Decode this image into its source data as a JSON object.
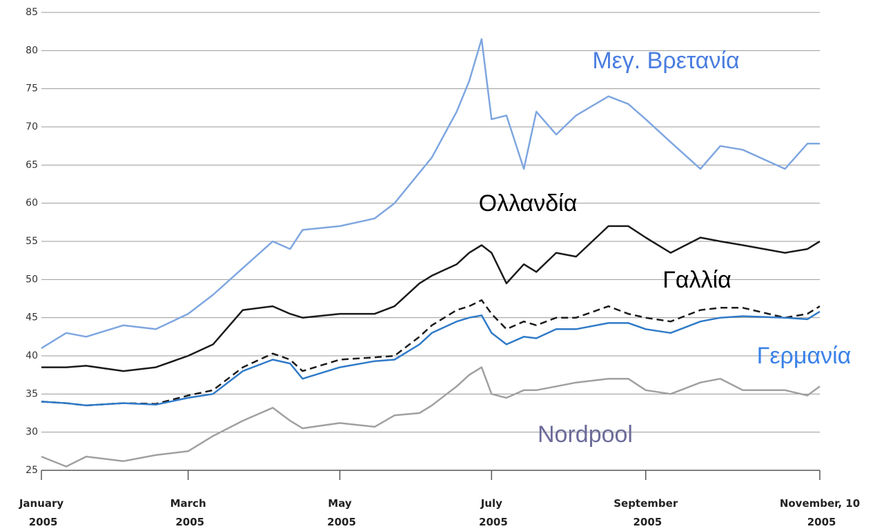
{
  "chart_data": {
    "type": "line",
    "x": [
      0,
      10,
      18,
      33,
      46,
      59,
      69,
      81,
      93,
      100,
      105,
      120,
      134,
      142,
      152,
      157,
      167,
      172,
      177,
      181,
      187,
      194,
      199,
      207,
      215,
      228,
      236,
      243,
      253,
      265,
      273,
      282,
      299,
      308,
      313
    ],
    "xlim": [
      0,
      313
    ],
    "xticks": [
      {
        "value": 0,
        "label": "January 2005"
      },
      {
        "value": 59,
        "label": "March 2005"
      },
      {
        "value": 120,
        "label": "May 2005"
      },
      {
        "value": 181,
        "label": "July 2005"
      },
      {
        "value": 243,
        "label": "September 2005"
      },
      {
        "value": 313,
        "label": "November, 10 2005"
      }
    ],
    "ylim": [
      25,
      85
    ],
    "yticks": [
      25,
      30,
      35,
      40,
      45,
      50,
      55,
      60,
      65,
      70,
      75,
      80,
      85
    ],
    "grid": true,
    "series": [
      {
        "name": "Μεγ. Βρετανία",
        "color": "#7ea6e0",
        "label_color": "#4a7de0",
        "values": [
          41,
          43,
          42.5,
          44,
          43.5,
          45.5,
          48,
          51.5,
          55,
          54,
          56.5,
          57,
          58,
          60,
          64,
          66,
          72,
          76,
          81.5,
          71,
          71.5,
          64.5,
          72,
          69,
          71.5,
          74,
          73,
          71,
          68,
          64.5,
          67.5,
          67,
          64.5,
          67.8,
          67.8
        ]
      },
      {
        "name": "Ολλανδία",
        "color": "#1a1a1a",
        "label_color": "#000000",
        "values": [
          38.5,
          38.5,
          38.7,
          38,
          38.5,
          40,
          41.5,
          46,
          46.5,
          45.5,
          45,
          45.5,
          45.5,
          46.5,
          49.5,
          50.5,
          52,
          53.5,
          54.5,
          53.5,
          49.5,
          52,
          51,
          53.5,
          53,
          57,
          57,
          55.5,
          53.5,
          55.5,
          55,
          54.5,
          53.5,
          54,
          55
        ]
      },
      {
        "name": "Γαλλία",
        "color": "#1a1a1a",
        "label_color": "#000000",
        "dashed": true,
        "values": [
          34,
          33.8,
          33.5,
          33.8,
          33.7,
          34.8,
          35.5,
          38.5,
          40.3,
          39.5,
          38,
          39.5,
          39.8,
          40,
          42.5,
          44,
          46,
          46.5,
          47.3,
          45.5,
          43.5,
          44.5,
          44,
          45,
          45,
          46.5,
          45.5,
          45,
          44.5,
          46,
          46.3,
          46.3,
          45,
          45.5,
          46.5
        ]
      },
      {
        "name": "Γερμανία",
        "color": "#2f7ac8",
        "label_color": "#3b82e8",
        "values": [
          34,
          33.8,
          33.5,
          33.8,
          33.6,
          34.5,
          35,
          38,
          39.5,
          39,
          37,
          38.5,
          39.3,
          39.5,
          41.5,
          43,
          44.5,
          45,
          45.3,
          43,
          41.5,
          42.5,
          42.3,
          43.5,
          43.5,
          44.3,
          44.3,
          43.5,
          43,
          44.5,
          45,
          45.2,
          45,
          44.8,
          45.8
        ]
      },
      {
        "name": "Nordpool",
        "color": "#a0a0a0",
        "label_color": "#6b6b9a",
        "values": [
          26.8,
          25.5,
          26.8,
          26.2,
          27,
          27.5,
          29.5,
          31.5,
          33.2,
          31.5,
          30.5,
          31.2,
          30.7,
          32.2,
          32.5,
          33.5,
          36,
          37.5,
          38.5,
          35,
          34.5,
          35.5,
          35.5,
          36,
          36.5,
          37,
          37,
          35.5,
          35,
          36.5,
          37,
          35.5,
          35.5,
          34.8,
          36
        ]
      }
    ]
  }
}
